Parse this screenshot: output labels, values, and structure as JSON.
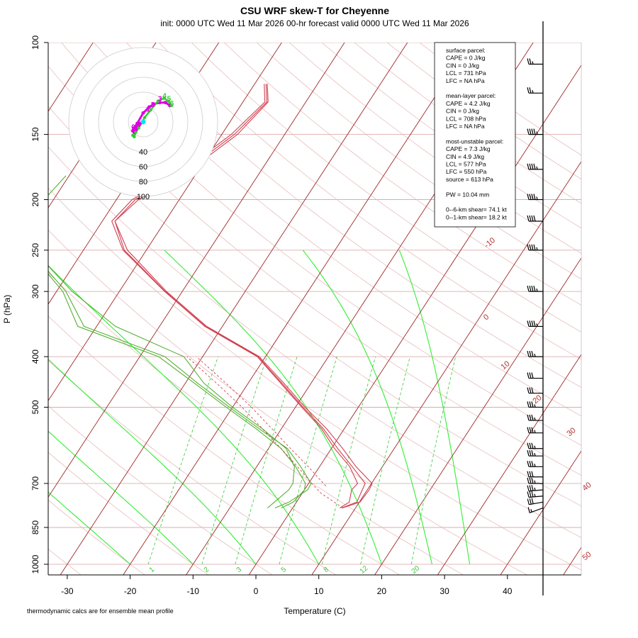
{
  "header": {
    "title": "CSU WRF skew-T for Cheyenne",
    "subtitle": "init: 0000 UTC Wed 11 Mar 2026     00-hr forecast valid 0000 UTC Wed 11 Mar 2026"
  },
  "footer_note": "thermodynamic calcs are for ensemble mean profile",
  "colors": {
    "temperature": "#d04050",
    "dewpoint": "#55b035",
    "isotherm": "#a02828",
    "dry_adiabat": "#e4b4b4",
    "moist_adiabat": "#33ee33",
    "mixing_ratio": "#33cc33",
    "isobar": "#d8a0a0",
    "hodo_low": "#dd00dd",
    "hodo_high": "#33cc33",
    "hodo_dot": "#00e5ee"
  },
  "info_box": {
    "lines": [
      "surface parcel:",
      "CAPE = 0 J/kg",
      "CIN = 0 J/kg",
      "LCL = 731 hPa",
      "LFC = NA hPa",
      "",
      "mean-layer parcel:",
      "CAPE = 4.2 J/kg",
      "CIN = 0 J/kg",
      "LCL = 708 hPa",
      "LFC = NA hPa",
      "",
      "most-unstable parcel:",
      "CAPE = 7.3 J/kg",
      "CIN = 4.9 J/kg",
      "LCL = 577 hPa",
      "LFC = 550 hPa",
      "source = 613 hPa",
      "",
      "PW =  10.04 mm",
      "",
      "0--6-km shear= 74.1 kt",
      "0--1-km shear= 18.2 kt"
    ]
  },
  "hodograph": {
    "ring_labels": [
      "40",
      "60",
      "80",
      "100"
    ],
    "ring_values_kt": [
      20,
      40,
      60,
      80,
      100
    ],
    "low_points": [
      [
        -4,
        -2
      ],
      [
        -6,
        -5
      ],
      [
        -8,
        -8
      ],
      [
        -10,
        -12
      ],
      [
        -12,
        -14
      ],
      [
        -14,
        -12
      ],
      [
        -12,
        -8
      ],
      [
        -8,
        -2
      ],
      [
        0,
        12
      ],
      [
        8,
        20
      ],
      [
        14,
        24
      ],
      [
        22,
        26
      ],
      [
        30,
        26
      ],
      [
        36,
        22
      ]
    ],
    "high_points": [
      [
        -14,
        -18
      ],
      [
        -12,
        -20
      ],
      [
        -10,
        -14
      ],
      [
        -6,
        -8
      ],
      [
        2,
        6
      ],
      [
        10,
        16
      ],
      [
        20,
        28
      ],
      [
        28,
        32
      ],
      [
        34,
        28
      ],
      [
        38,
        22
      ]
    ],
    "low_labels": [
      {
        "text": "0",
        "u": -16,
        "v": -10
      },
      {
        "text": "1",
        "u": 4,
        "v": 14
      },
      {
        "text": "2",
        "u": 10,
        "v": 20
      },
      {
        "text": "3",
        "u": 20,
        "v": 28
      }
    ],
    "high_labels": [
      {
        "text": "4",
        "u": 26,
        "v": 32
      },
      {
        "text": "5",
        "u": 32,
        "v": 28
      },
      {
        "text": "6",
        "u": 36,
        "v": 22
      }
    ]
  },
  "chart_data": {
    "type": "line",
    "title": "CSU WRF skew-T for Cheyenne",
    "xlabel": "Temperature (C)",
    "ylabel": "P (hPa)",
    "x_ticks": [
      -30,
      -20,
      -10,
      0,
      10,
      20,
      30,
      40
    ],
    "y_ticks": [
      100,
      150,
      200,
      250,
      300,
      400,
      500,
      700,
      850,
      1000
    ],
    "isotherm_labels": [
      -10,
      0,
      10,
      20,
      30,
      40,
      50
    ],
    "mixing_ratio_labels": [
      "1",
      "2",
      "3",
      "5",
      "8",
      "12",
      "20"
    ],
    "series": [
      {
        "name": "",
        "kind": "temperature",
        "members": [
          [
            [
              780,
              7.9
            ],
            [
              760,
              10.1
            ],
            [
              720,
              10.3
            ],
            [
              700,
              10.1
            ],
            [
              650,
              5.8
            ],
            [
              600,
              1.8
            ],
            [
              550,
              -2.8
            ],
            [
              500,
              -8.5
            ],
            [
              450,
              -14.3
            ],
            [
              400,
              -21.0
            ],
            [
              350,
              -32.5
            ],
            [
              300,
              -42.5
            ],
            [
              250,
              -53.0
            ],
            [
              220,
              -58.0
            ],
            [
              200,
              -56.5
            ],
            [
              180,
              -52.0
            ],
            [
              150,
              -47.5
            ],
            [
              130,
              -46.0
            ],
            [
              120,
              -48.0
            ]
          ],
          [
            [
              780,
              7.8
            ],
            [
              760,
              9.6
            ],
            [
              720,
              9.2
            ],
            [
              700,
              9.0
            ],
            [
              650,
              5.2
            ],
            [
              600,
              1.0
            ],
            [
              550,
              -3.3
            ],
            [
              500,
              -8.8
            ],
            [
              450,
              -14.6
            ],
            [
              400,
              -21.2
            ],
            [
              350,
              -32.7
            ],
            [
              300,
              -42.7
            ],
            [
              250,
              -53.5
            ],
            [
              220,
              -58.0
            ],
            [
              200,
              -57.0
            ],
            [
              180,
              -52.5
            ],
            [
              150,
              -48.0
            ],
            [
              130,
              -46.2
            ],
            [
              120,
              -48.2
            ]
          ],
          [
            [
              780,
              7.5
            ],
            [
              760,
              8.4
            ],
            [
              720,
              7.5
            ],
            [
              700,
              7.8
            ],
            [
              650,
              4.8
            ],
            [
              600,
              0.5
            ],
            [
              550,
              -3.6
            ],
            [
              500,
              -9.0
            ],
            [
              450,
              -14.8
            ],
            [
              400,
              -21.3
            ],
            [
              350,
              -32.8
            ],
            [
              300,
              -42.8
            ],
            [
              250,
              -53.7
            ],
            [
              220,
              -58.5
            ],
            [
              200,
              -57.5
            ],
            [
              180,
              -53.0
            ],
            [
              150,
              -48.5
            ],
            [
              130,
              -46.5
            ],
            [
              120,
              -48.5
            ]
          ]
        ]
      },
      {
        "name": "",
        "kind": "dewpoint",
        "members": [
          [
            [
              780,
              -4.0
            ],
            [
              760,
              -3.5
            ],
            [
              720,
              -2.5
            ],
            [
              700,
              -2.5
            ],
            [
              650,
              -4.0
            ],
            [
              600,
              -7.2
            ],
            [
              550,
              -13.0
            ],
            [
              500,
              -20.0
            ],
            [
              450,
              -27.0
            ],
            [
              400,
              -33.0
            ],
            [
              350,
              -47.0
            ],
            [
              300,
              -57.5
            ],
            [
              250,
              -68.0
            ],
            [
              220,
              -71.5
            ],
            [
              200,
              -71.5
            ],
            [
              180,
              -70.5
            ]
          ],
          [
            [
              780,
              -2.8
            ],
            [
              760,
              -1.2
            ],
            [
              720,
              0.5
            ],
            [
              700,
              0.4
            ],
            [
              650,
              -3.0
            ],
            [
              600,
              -7.0
            ],
            [
              550,
              -13.5
            ],
            [
              500,
              -20.5
            ],
            [
              450,
              -28.0
            ],
            [
              400,
              -36.0
            ],
            [
              350,
              -52.0
            ],
            [
              300,
              -58.5
            ],
            [
              250,
              -68.5
            ],
            [
              220,
              -71.5
            ],
            [
              200,
              -71.5
            ]
          ],
          [
            [
              780,
              -1.8
            ],
            [
              760,
              -0.5
            ],
            [
              720,
              0.0
            ],
            [
              700,
              -0.5
            ],
            [
              650,
              -3.8
            ],
            [
              600,
              -8.0
            ],
            [
              550,
              -14.0
            ],
            [
              500,
              -21.0
            ],
            [
              450,
              -28.5
            ],
            [
              400,
              -37.0
            ],
            [
              350,
              -53.0
            ],
            [
              300,
              -59.0
            ],
            [
              250,
              -68.8
            ],
            [
              220,
              -71.8
            ],
            [
              200,
              -71.8
            ]
          ]
        ]
      },
      {
        "name": "",
        "kind": "parcel",
        "members": [
          [
            [
              780,
              8.0
            ],
            [
              731,
              3.0
            ],
            [
              700,
              0.5
            ],
            [
              650,
              -3.5
            ],
            [
              600,
              -8.0
            ],
            [
              550,
              -13.0
            ],
            [
              500,
              -18.5
            ],
            [
              450,
              -25.0
            ],
            [
              400,
              -32.5
            ]
          ],
          [
            [
              708,
              3.0
            ],
            [
              650,
              -1.8
            ],
            [
              600,
              -6.5
            ],
            [
              550,
              -11.5
            ],
            [
              500,
              -17.0
            ],
            [
              450,
              -23.5
            ],
            [
              400,
              -31.0
            ]
          ]
        ]
      }
    ],
    "wind_barbs": [
      {
        "p": 780,
        "speed_kt": 15,
        "dir": 250
      },
      {
        "p": 760,
        "speed_kt": 30,
        "dir": 260
      },
      {
        "p": 740,
        "speed_kt": 35,
        "dir": 265
      },
      {
        "p": 720,
        "speed_kt": 35,
        "dir": 265
      },
      {
        "p": 700,
        "speed_kt": 35,
        "dir": 270
      },
      {
        "p": 680,
        "speed_kt": 30,
        "dir": 270
      },
      {
        "p": 650,
        "speed_kt": 35,
        "dir": 270
      },
      {
        "p": 620,
        "speed_kt": 35,
        "dir": 270
      },
      {
        "p": 600,
        "speed_kt": 35,
        "dir": 270
      },
      {
        "p": 560,
        "speed_kt": 35,
        "dir": 270
      },
      {
        "p": 530,
        "speed_kt": 35,
        "dir": 270
      },
      {
        "p": 500,
        "speed_kt": 35,
        "dir": 270
      },
      {
        "p": 470,
        "speed_kt": 30,
        "dir": 270
      },
      {
        "p": 440,
        "speed_kt": 30,
        "dir": 270
      },
      {
        "p": 400,
        "speed_kt": 35,
        "dir": 270
      },
      {
        "p": 350,
        "speed_kt": 45,
        "dir": 270
      },
      {
        "p": 300,
        "speed_kt": 45,
        "dir": 270
      },
      {
        "p": 250,
        "speed_kt": 45,
        "dir": 270
      },
      {
        "p": 220,
        "speed_kt": 40,
        "dir": 270
      },
      {
        "p": 200,
        "speed_kt": 45,
        "dir": 270
      },
      {
        "p": 175,
        "speed_kt": 45,
        "dir": 270
      },
      {
        "p": 150,
        "speed_kt": 45,
        "dir": 270
      },
      {
        "p": 125,
        "speed_kt": 25,
        "dir": 270
      },
      {
        "p": 110,
        "speed_kt": 25,
        "dir": 270
      }
    ]
  }
}
